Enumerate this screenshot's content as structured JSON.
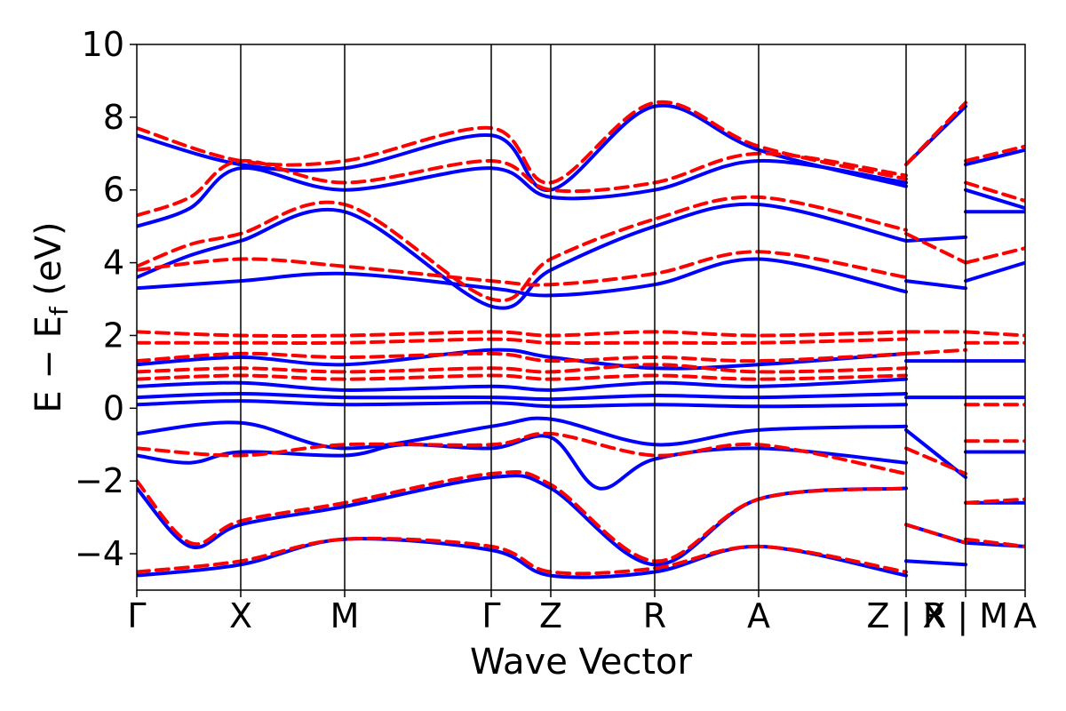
{
  "chart_data": {
    "type": "line",
    "title": "",
    "xlabel": "Wave Vector",
    "ylabel": {
      "main": "E − E",
      "sub": "f",
      "unit": " (eV)"
    },
    "ylim": [
      -5,
      10
    ],
    "y_ticks": [
      {
        "value": -4,
        "label": "−4"
      },
      {
        "value": -2,
        "label": "−2"
      },
      {
        "value": 0,
        "label": "0"
      },
      {
        "value": 2,
        "label": "2"
      },
      {
        "value": 4,
        "label": "4"
      },
      {
        "value": 6,
        "label": "6"
      },
      {
        "value": 8,
        "label": "8"
      },
      {
        "value": 10,
        "label": "10"
      }
    ],
    "x_domain": [
      0,
      1
    ],
    "high_symmetry_points": [
      {
        "label": "Γ",
        "x": 0.0
      },
      {
        "label": "X",
        "x": 0.117
      },
      {
        "label": "M",
        "x": 0.234
      },
      {
        "label": "Γ",
        "x": 0.399
      },
      {
        "label": "Z",
        "x": 0.466
      },
      {
        "label": "R",
        "x": 0.583
      },
      {
        "label": "A",
        "x": 0.7
      },
      {
        "label": "Z | X",
        "x": 0.866
      },
      {
        "label": "R | M",
        "x": 0.933
      },
      {
        "label": "A",
        "x": 1.0
      }
    ],
    "colors": {
      "series_a": "#0000ff",
      "series_b": "#ff0000",
      "axes": "#000000"
    },
    "series": [
      {
        "name": "blue solid",
        "style": "solid",
        "color": "#0000ff",
        "bands": [
          {
            "x": [
              0,
              0.117,
              0.234,
              0.399,
              0.466,
              0.583,
              0.7,
              0.866
            ],
            "y": [
              -4.6,
              -4.3,
              -3.6,
              -3.9,
              -4.6,
              -4.5,
              -3.8,
              -4.6
            ]
          },
          {
            "x": [
              0,
              0.06,
              0.117,
              0.234,
              0.399,
              0.466,
              0.583,
              0.7,
              0.866
            ],
            "y": [
              -2.2,
              -3.8,
              -3.2,
              -2.7,
              -1.9,
              -2.2,
              -4.3,
              -2.5,
              -2.2
            ]
          },
          {
            "x": [
              0,
              0.06,
              0.117,
              0.234,
              0.3,
              0.399,
              0.466,
              0.52,
              0.583,
              0.7,
              0.866
            ],
            "y": [
              -1.3,
              -1.5,
              -1.2,
              -1.3,
              -1.0,
              -1.1,
              -0.8,
              -2.2,
              -1.4,
              -1.1,
              -1.5
            ]
          },
          {
            "x": [
              0,
              0.117,
              0.234,
              0.399,
              0.466,
              0.583,
              0.7,
              0.866
            ],
            "y": [
              -0.7,
              -0.4,
              -1.1,
              -0.5,
              -0.3,
              -1.0,
              -0.6,
              -0.5
            ]
          },
          {
            "x": [
              0,
              0.117,
              0.234,
              0.399,
              0.466,
              0.583,
              0.7,
              0.866
            ],
            "y": [
              0.1,
              0.2,
              0.1,
              0.15,
              0.05,
              0.1,
              0.05,
              0.1
            ]
          },
          {
            "x": [
              0,
              0.117,
              0.234,
              0.399,
              0.466,
              0.583,
              0.7,
              0.866
            ],
            "y": [
              0.3,
              0.4,
              0.3,
              0.3,
              0.25,
              0.35,
              0.3,
              0.4
            ]
          },
          {
            "x": [
              0,
              0.117,
              0.234,
              0.399,
              0.466,
              0.583,
              0.7,
              0.866
            ],
            "y": [
              0.6,
              0.7,
              0.5,
              0.6,
              0.5,
              0.7,
              0.6,
              0.8
            ]
          },
          {
            "x": [
              0,
              0.117,
              0.234,
              0.399,
              0.466,
              0.583,
              0.7,
              0.866
            ],
            "y": [
              1.2,
              1.4,
              1.2,
              1.6,
              1.4,
              1.1,
              1.2,
              1.5
            ]
          },
          {
            "x": [
              0,
              0.117,
              0.234,
              0.399,
              0.466,
              0.583,
              0.7,
              0.866
            ],
            "y": [
              3.3,
              3.5,
              3.7,
              3.3,
              3.1,
              3.4,
              4.1,
              3.2
            ]
          },
          {
            "x": [
              0,
              0.06,
              0.117,
              0.234,
              0.399,
              0.466,
              0.583,
              0.7,
              0.866
            ],
            "y": [
              3.6,
              4.2,
              4.6,
              5.4,
              2.8,
              3.8,
              5.0,
              5.6,
              4.6
            ]
          },
          {
            "x": [
              0,
              0.06,
              0.117,
              0.234,
              0.399,
              0.466,
              0.583,
              0.7,
              0.866
            ],
            "y": [
              5.0,
              5.5,
              6.6,
              6.0,
              6.6,
              5.8,
              6.0,
              6.8,
              6.2
            ]
          },
          {
            "x": [
              0,
              0.117,
              0.234,
              0.399,
              0.466,
              0.583,
              0.7,
              0.866
            ],
            "y": [
              7.5,
              6.7,
              6.6,
              7.5,
              6.0,
              8.3,
              7.1,
              6.1
            ]
          },
          {
            "x": [
              0.866,
              0.933
            ],
            "y": [
              6.7,
              8.3
            ]
          },
          {
            "x": [
              0.866,
              0.933
            ],
            "y": [
              4.6,
              4.7
            ]
          },
          {
            "x": [
              0.866,
              0.933
            ],
            "y": [
              3.5,
              3.3
            ]
          },
          {
            "x": [
              0.866,
              0.933
            ],
            "y": [
              -0.6,
              -1.9
            ]
          },
          {
            "x": [
              0.866,
              0.933
            ],
            "y": [
              -3.2,
              -3.7
            ]
          },
          {
            "x": [
              0.866,
              0.933
            ],
            "y": [
              -4.2,
              -4.3
            ]
          },
          {
            "x": [
              0.866,
              0.933
            ],
            "y": [
              1.3,
              1.3
            ]
          },
          {
            "x": [
              0.866,
              0.933
            ],
            "y": [
              0.3,
              0.3
            ]
          },
          {
            "x": [
              0.933,
              1.0
            ],
            "y": [
              6.7,
              7.1
            ]
          },
          {
            "x": [
              0.933,
              1.0
            ],
            "y": [
              6.0,
              5.5
            ]
          },
          {
            "x": [
              0.933,
              1.0
            ],
            "y": [
              5.4,
              5.4
            ]
          },
          {
            "x": [
              0.933,
              1.0
            ],
            "y": [
              3.5,
              4.0
            ]
          },
          {
            "x": [
              0.933,
              1.0
            ],
            "y": [
              1.3,
              1.3
            ]
          },
          {
            "x": [
              0.933,
              1.0
            ],
            "y": [
              0.3,
              0.3
            ]
          },
          {
            "x": [
              0.933,
              1.0
            ],
            "y": [
              -1.2,
              -1.2
            ]
          },
          {
            "x": [
              0.933,
              1.0
            ],
            "y": [
              -2.6,
              -2.6
            ]
          },
          {
            "x": [
              0.933,
              1.0
            ],
            "y": [
              -3.7,
              -3.8
            ]
          }
        ]
      },
      {
        "name": "red dashed",
        "style": "dashed",
        "color": "#ff0000",
        "bands": [
          {
            "x": [
              0,
              0.117,
              0.234,
              0.399,
              0.466,
              0.583,
              0.7,
              0.866
            ],
            "y": [
              -4.5,
              -4.2,
              -3.6,
              -3.8,
              -4.5,
              -4.4,
              -3.8,
              -4.5
            ]
          },
          {
            "x": [
              0,
              0.06,
              0.117,
              0.234,
              0.399,
              0.466,
              0.583,
              0.7,
              0.866
            ],
            "y": [
              -2.0,
              -3.7,
              -3.1,
              -2.6,
              -1.8,
              -2.1,
              -4.2,
              -2.5,
              -2.2
            ]
          },
          {
            "x": [
              0,
              0.117,
              0.234,
              0.399,
              0.466,
              0.583,
              0.7,
              0.866
            ],
            "y": [
              -1.1,
              -1.3,
              -1.0,
              -1.0,
              -0.7,
              -1.3,
              -1.0,
              -1.8
            ]
          },
          {
            "x": [
              0,
              0.117,
              0.234,
              0.399,
              0.466,
              0.583,
              0.7,
              0.866
            ],
            "y": [
              0.8,
              0.9,
              0.8,
              0.9,
              0.8,
              0.9,
              0.8,
              0.9
            ]
          },
          {
            "x": [
              0,
              0.117,
              0.234,
              0.399,
              0.466,
              0.583,
              0.7,
              0.866
            ],
            "y": [
              1.0,
              1.1,
              1.0,
              1.1,
              1.0,
              1.2,
              1.0,
              1.1
            ]
          },
          {
            "x": [
              0,
              0.117,
              0.234,
              0.399,
              0.466,
              0.583,
              0.7,
              0.866
            ],
            "y": [
              1.3,
              1.5,
              1.4,
              1.5,
              1.3,
              1.4,
              1.3,
              1.5
            ]
          },
          {
            "x": [
              0,
              0.117,
              0.234,
              0.399,
              0.466,
              0.583,
              0.7,
              0.866
            ],
            "y": [
              1.8,
              1.8,
              1.8,
              1.9,
              1.8,
              1.8,
              1.8,
              1.9
            ]
          },
          {
            "x": [
              0,
              0.117,
              0.234,
              0.399,
              0.466,
              0.583,
              0.7,
              0.866
            ],
            "y": [
              2.1,
              2.0,
              2.0,
              2.1,
              2.0,
              2.1,
              2.0,
              2.1
            ]
          },
          {
            "x": [
              0,
              0.117,
              0.234,
              0.399,
              0.466,
              0.583,
              0.7,
              0.866
            ],
            "y": [
              3.8,
              4.1,
              3.9,
              3.5,
              3.4,
              3.7,
              4.3,
              3.6
            ]
          },
          {
            "x": [
              0,
              0.06,
              0.117,
              0.234,
              0.399,
              0.466,
              0.583,
              0.7,
              0.866
            ],
            "y": [
              3.9,
              4.5,
              4.8,
              5.6,
              3.0,
              4.1,
              5.2,
              5.8,
              4.9
            ]
          },
          {
            "x": [
              0,
              0.06,
              0.117,
              0.234,
              0.399,
              0.466,
              0.583,
              0.7,
              0.866
            ],
            "y": [
              5.3,
              5.8,
              6.8,
              6.2,
              6.8,
              6.0,
              6.2,
              7.0,
              6.4
            ]
          },
          {
            "x": [
              0,
              0.117,
              0.234,
              0.399,
              0.466,
              0.583,
              0.7,
              0.866
            ],
            "y": [
              7.7,
              6.8,
              6.8,
              7.7,
              6.2,
              8.4,
              7.2,
              6.3
            ]
          },
          {
            "x": [
              0.866,
              0.933
            ],
            "y": [
              6.7,
              8.4
            ]
          },
          {
            "x": [
              0.866,
              0.933
            ],
            "y": [
              4.8,
              4.0
            ]
          },
          {
            "x": [
              0.866,
              0.933
            ],
            "y": [
              2.1,
              2.1
            ]
          },
          {
            "x": [
              0.866,
              0.933
            ],
            "y": [
              1.5,
              1.6
            ]
          },
          {
            "x": [
              0.866,
              0.933
            ],
            "y": [
              -1.1,
              -1.8
            ]
          },
          {
            "x": [
              0.866,
              0.933
            ],
            "y": [
              -3.2,
              -3.7
            ]
          },
          {
            "x": [
              0.933,
              1.0
            ],
            "y": [
              6.8,
              7.2
            ]
          },
          {
            "x": [
              0.933,
              1.0
            ],
            "y": [
              6.2,
              5.7
            ]
          },
          {
            "x": [
              0.933,
              1.0
            ],
            "y": [
              4.0,
              4.4
            ]
          },
          {
            "x": [
              0.933,
              1.0
            ],
            "y": [
              2.1,
              2.0
            ]
          },
          {
            "x": [
              0.933,
              1.0
            ],
            "y": [
              1.8,
              1.8
            ]
          },
          {
            "x": [
              0.933,
              1.0
            ],
            "y": [
              0.1,
              0.1
            ]
          },
          {
            "x": [
              0.933,
              1.0
            ],
            "y": [
              -0.9,
              -0.9
            ]
          },
          {
            "x": [
              0.933,
              1.0
            ],
            "y": [
              -2.6,
              -2.5
            ]
          },
          {
            "x": [
              0.933,
              1.0
            ],
            "y": [
              -3.6,
              -3.8
            ]
          }
        ]
      }
    ]
  }
}
